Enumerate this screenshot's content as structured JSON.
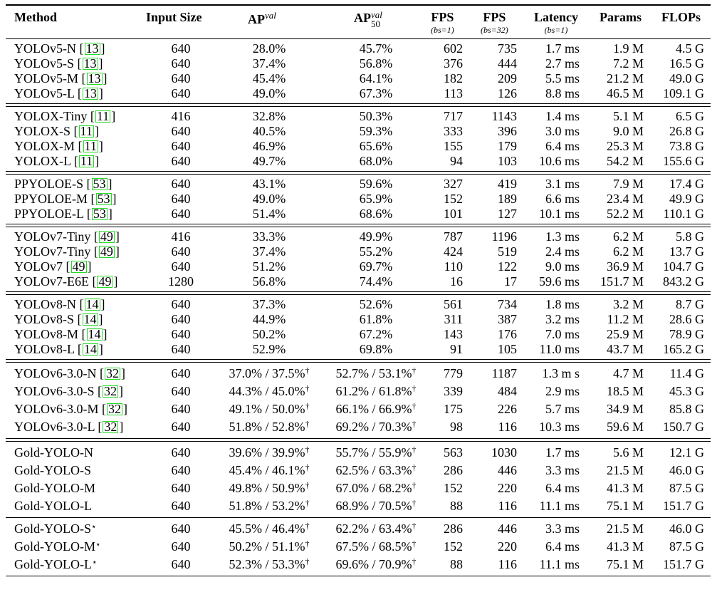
{
  "columns": {
    "method": "Method",
    "input_size": "Input Size",
    "ap_val": {
      "base": "AP",
      "sup": "val"
    },
    "ap50_val": {
      "base": "AP",
      "sup": "val",
      "sub": "50"
    },
    "fps1": {
      "label": "FPS",
      "sub": "(bs=1)"
    },
    "fps32": {
      "label": "FPS",
      "sub": "(bs=32)"
    },
    "latency": {
      "label": "Latency",
      "sub": "(bs=1)"
    },
    "params": "Params",
    "flops": "FLOPs"
  },
  "groups": [
    {
      "rows": [
        {
          "method": "YOLOv5-N",
          "cite": "13",
          "size": "640",
          "ap": "28.0%",
          "ap50": "45.7%",
          "fps1": "602",
          "fps32": "735",
          "lat": "1.7 ms",
          "params": "1.9 M",
          "flops": "4.5 G"
        },
        {
          "method": "YOLOv5-S",
          "cite": "13",
          "size": "640",
          "ap": "37.4%",
          "ap50": "56.8%",
          "fps1": "376",
          "fps32": "444",
          "lat": "2.7 ms",
          "params": "7.2 M",
          "flops": "16.5 G"
        },
        {
          "method": "YOLOv5-M",
          "cite": "13",
          "size": "640",
          "ap": "45.4%",
          "ap50": "64.1%",
          "fps1": "182",
          "fps32": "209",
          "lat": "5.5 ms",
          "params": "21.2 M",
          "flops": "49.0 G"
        },
        {
          "method": "YOLOv5-L",
          "cite": "13",
          "size": "640",
          "ap": "49.0%",
          "ap50": "67.3%",
          "fps1": "113",
          "fps32": "126",
          "lat": "8.8 ms",
          "params": "46.5 M",
          "flops": "109.1 G"
        }
      ]
    },
    {
      "rows": [
        {
          "method": "YOLOX-Tiny",
          "cite": "11",
          "size": "416",
          "ap": "32.8%",
          "ap50": "50.3%",
          "fps1": "717",
          "fps32": "1143",
          "lat": "1.4 ms",
          "params": "5.1 M",
          "flops": "6.5 G"
        },
        {
          "method": "YOLOX-S",
          "cite": "11",
          "size": "640",
          "ap": "40.5%",
          "ap50": "59.3%",
          "fps1": "333",
          "fps32": "396",
          "lat": "3.0 ms",
          "params": "9.0 M",
          "flops": "26.8 G"
        },
        {
          "method": "YOLOX-M",
          "cite": "11",
          "size": "640",
          "ap": "46.9%",
          "ap50": "65.6%",
          "fps1": "155",
          "fps32": "179",
          "lat": "6.4 ms",
          "params": "25.3 M",
          "flops": "73.8 G"
        },
        {
          "method": "YOLOX-L",
          "cite": "11",
          "size": "640",
          "ap": "49.7%",
          "ap50": "68.0%",
          "fps1": "94",
          "fps32": "103",
          "lat": "10.6 ms",
          "params": "54.2 M",
          "flops": "155.6 G"
        }
      ]
    },
    {
      "rows": [
        {
          "method": "PPYOLOE-S",
          "cite": "53",
          "size": "640",
          "ap": "43.1%",
          "ap50": "59.6%",
          "fps1": "327",
          "fps32": "419",
          "lat": "3.1 ms",
          "params": "7.9 M",
          "flops": "17.4 G"
        },
        {
          "method": "PPYOLOE-M",
          "cite": "53",
          "size": "640",
          "ap": "49.0%",
          "ap50": "65.9%",
          "fps1": "152",
          "fps32": "189",
          "lat": "6.6 ms",
          "params": "23.4 M",
          "flops": "49.9 G"
        },
        {
          "method": "PPYOLOE-L",
          "cite": "53",
          "size": "640",
          "ap": "51.4%",
          "ap50": "68.6%",
          "fps1": "101",
          "fps32": "127",
          "lat": "10.1 ms",
          "params": "52.2 M",
          "flops": "110.1 G"
        }
      ]
    },
    {
      "rows": [
        {
          "method": "YOLOv7-Tiny",
          "cite": "49",
          "size": "416",
          "ap": "33.3%",
          "ap50": "49.9%",
          "fps1": "787",
          "fps32": "1196",
          "lat": "1.3 ms",
          "params": "6.2 M",
          "flops": "5.8 G"
        },
        {
          "method": "YOLOv7-Tiny",
          "cite": "49",
          "size": "640",
          "ap": "37.4%",
          "ap50": "55.2%",
          "fps1": "424",
          "fps32": "519",
          "lat": "2.4 ms",
          "params": "6.2 M",
          "flops": "13.7 G"
        },
        {
          "method": "YOLOv7",
          "cite": "49",
          "size": "640",
          "ap": "51.2%",
          "ap50": "69.7%",
          "fps1": "110",
          "fps32": "122",
          "lat": "9.0 ms",
          "params": "36.9 M",
          "flops": "104.7 G"
        },
        {
          "method": "YOLOv7-E6E",
          "cite": "49",
          "size": "1280",
          "ap": "56.8%",
          "ap50": "74.4%",
          "fps1": "16",
          "fps32": "17",
          "lat": "59.6 ms",
          "params": "151.7 M",
          "flops": "843.2 G"
        }
      ]
    },
    {
      "rows": [
        {
          "method": "YOLOv8-N",
          "cite": "14",
          "size": "640",
          "ap": "37.3%",
          "ap50": "52.6%",
          "fps1": "561",
          "fps32": "734",
          "lat": "1.8 ms",
          "params": "3.2 M",
          "flops": "8.7 G"
        },
        {
          "method": "YOLOv8-S",
          "cite": "14",
          "size": "640",
          "ap": "44.9%",
          "ap50": "61.8%",
          "fps1": "311",
          "fps32": "387",
          "lat": "3.2 ms",
          "params": "11.2 M",
          "flops": "28.6 G"
        },
        {
          "method": "YOLOv8-M",
          "cite": "14",
          "size": "640",
          "ap": "50.2%",
          "ap50": "67.2%",
          "fps1": "143",
          "fps32": "176",
          "lat": "7.0 ms",
          "params": "25.9 M",
          "flops": "78.9 G"
        },
        {
          "method": "YOLOv8-L",
          "cite": "14",
          "size": "640",
          "ap": "52.9%",
          "ap50": "69.8%",
          "fps1": "91",
          "fps32": "105",
          "lat": "11.0 ms",
          "params": "43.7 M",
          "flops": "165.2 G"
        }
      ]
    },
    {
      "tall": true,
      "rows": [
        {
          "method": "YOLOv6-3.0-N",
          "cite": "32",
          "size": "640",
          "ap": "37.0% / 37.5%",
          "ap_dag": "†",
          "ap50": "52.7% / 53.1%",
          "ap50_dag": "†",
          "fps1": "779",
          "fps32": "1187",
          "lat": "1.3 m s",
          "params": "4.7 M",
          "flops": "11.4 G"
        },
        {
          "method": "YOLOv6-3.0-S",
          "cite": "32",
          "size": "640",
          "ap": "44.3% / 45.0%",
          "ap_dag": "†",
          "ap50": "61.2% / 61.8%",
          "ap50_dag": "†",
          "fps1": "339",
          "fps32": "484",
          "lat": "2.9 ms",
          "params": "18.5 M",
          "flops": "45.3 G"
        },
        {
          "method": "YOLOv6-3.0-M",
          "cite": "32",
          "size": "640",
          "ap": "49.1% / 50.0%",
          "ap_dag": "†",
          "ap50": "66.1% / 66.9%",
          "ap50_dag": "†",
          "fps1": "175",
          "fps32": "226",
          "lat": "5.7 ms",
          "params": "34.9 M",
          "flops": "85.8 G"
        },
        {
          "method": "YOLOv6-3.0-L",
          "cite": "32",
          "size": "640",
          "ap": "51.8% / 52.8%",
          "ap_dag": "†",
          "ap50": "69.2% / 70.3%",
          "ap50_dag": "†",
          "fps1": "98",
          "fps32": "116",
          "lat": "10.3 ms",
          "params": "59.6 M",
          "flops": "150.7 G"
        }
      ]
    },
    {
      "tall": true,
      "rows": [
        {
          "method": "Gold-YOLO-N",
          "size": "640",
          "ap": "39.6% / 39.9%",
          "ap_dag": "†",
          "ap50": "55.7% / 55.9%",
          "ap50_dag": "†",
          "fps1": "563",
          "fps32": "1030",
          "lat": "1.7 ms",
          "params": "5.6 M",
          "flops": "12.1 G"
        },
        {
          "method": "Gold-YOLO-S",
          "size": "640",
          "ap": "45.4% / 46.1%",
          "ap_dag": "†",
          "ap50": "62.5% / 63.3%",
          "ap50_dag": "†",
          "fps1": "286",
          "fps32": "446",
          "lat": "3.3 ms",
          "params": "21.5 M",
          "flops": "46.0 G"
        },
        {
          "method": "Gold-YOLO-M",
          "size": "640",
          "ap": "49.8% / 50.9%",
          "ap_dag": "†",
          "ap50": "67.0% / 68.2%",
          "ap50_dag": "†",
          "fps1": "152",
          "fps32": "220",
          "lat": "6.4 ms",
          "params": "41.3 M",
          "flops": "87.5 G"
        },
        {
          "method": "Gold-YOLO-L",
          "size": "640",
          "ap": "51.8% / 53.2%",
          "ap_dag": "†",
          "ap50": "68.9% / 70.5%",
          "ap50_dag": "†",
          "fps1": "88",
          "fps32": "116",
          "lat": "11.1 ms",
          "params": "75.1 M",
          "flops": "151.7 G"
        }
      ]
    },
    {
      "tall": true,
      "single_rule": true,
      "rows": [
        {
          "method": "Gold-YOLO-S",
          "star": "⋆",
          "size": "640",
          "ap": "45.5% / 46.4%",
          "ap_dag": "†",
          "ap50": "62.2% / 63.4%",
          "ap50_dag": "†",
          "fps1": "286",
          "fps32": "446",
          "lat": "3.3 ms",
          "params": "21.5 M",
          "flops": "46.0 G"
        },
        {
          "method": "Gold-YOLO-M",
          "star": "⋆",
          "size": "640",
          "ap": "50.2% / 51.1%",
          "ap_dag": "†",
          "ap50": "67.5% / 68.5%",
          "ap50_dag": "†",
          "fps1": "152",
          "fps32": "220",
          "lat": "6.4 ms",
          "params": "41.3 M",
          "flops": "87.5 G"
        },
        {
          "method": "Gold-YOLO-L",
          "star": "⋆",
          "size": "640",
          "ap": "52.3% / 53.3%",
          "ap_dag": "†",
          "ap50": "69.6% / 70.9%",
          "ap50_dag": "†",
          "fps1": "88",
          "fps32": "116",
          "lat": "11.1 ms",
          "params": "75.1 M",
          "flops": "151.7 G"
        }
      ]
    }
  ]
}
